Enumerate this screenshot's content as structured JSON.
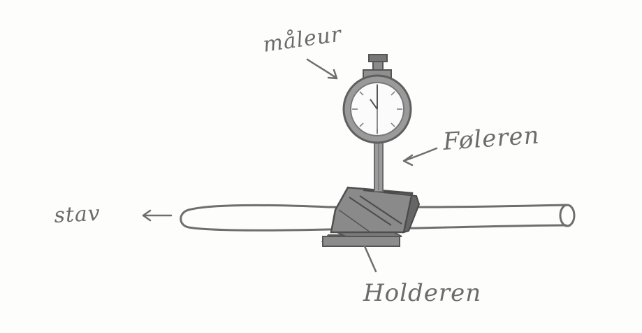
{
  "figure": {
    "labels": {
      "dial_gauge": "måleur",
      "probe": "Føleren",
      "rod": "stav",
      "holder": "Holderen"
    },
    "colors": {
      "paper": "#fdfdfc",
      "pencil": "#6e6e6e",
      "shading": "#8a8a8a",
      "dark_shading": "#555555"
    }
  }
}
